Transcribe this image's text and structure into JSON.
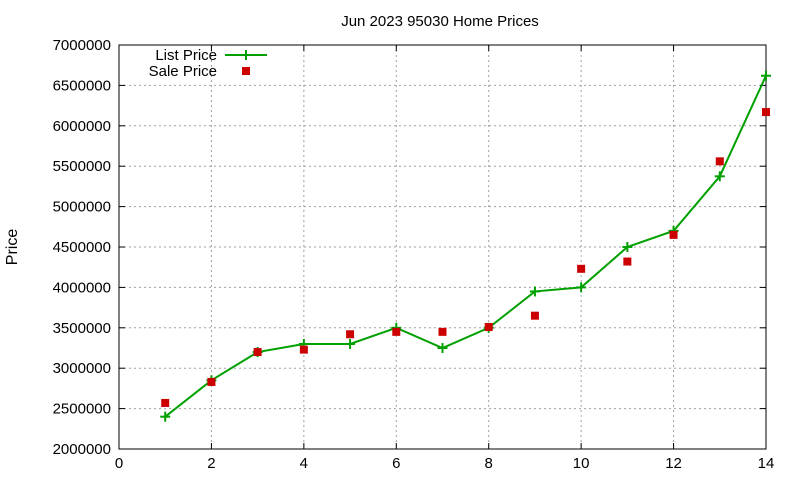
{
  "chart_data": {
    "type": "line",
    "title": "Jun 2023 95030 Home Prices",
    "xlabel": "",
    "ylabel": "Price",
    "xlim": [
      0,
      14
    ],
    "ylim": [
      2000000,
      7000000
    ],
    "x_ticks": [
      0,
      2,
      4,
      6,
      8,
      10,
      12,
      14
    ],
    "y_ticks": [
      2000000,
      2500000,
      3000000,
      3500000,
      4000000,
      4500000,
      5000000,
      5500000,
      6000000,
      6500000,
      7000000
    ],
    "grid": true,
    "legend_position": "top-left",
    "series": [
      {
        "name": "List Price",
        "style": "line+plus",
        "color": "#00a000",
        "x": [
          1,
          2,
          3,
          4,
          5,
          6,
          7,
          8,
          9,
          10,
          11,
          12,
          13,
          14
        ],
        "y": [
          2400000,
          2850000,
          3200000,
          3300000,
          3300000,
          3500000,
          3250000,
          3500000,
          3950000,
          4000000,
          4500000,
          4700000,
          5375000,
          6620000
        ]
      },
      {
        "name": "Sale Price",
        "style": "square",
        "color": "#cc0000",
        "x": [
          1,
          2,
          3,
          4,
          5,
          6,
          7,
          8,
          9,
          10,
          11,
          12,
          13,
          14
        ],
        "y": [
          2570000,
          2830000,
          3200000,
          3230000,
          3420000,
          3450000,
          3450000,
          3510000,
          3650000,
          4230000,
          4320000,
          4650000,
          5560000,
          6170000
        ]
      }
    ]
  }
}
